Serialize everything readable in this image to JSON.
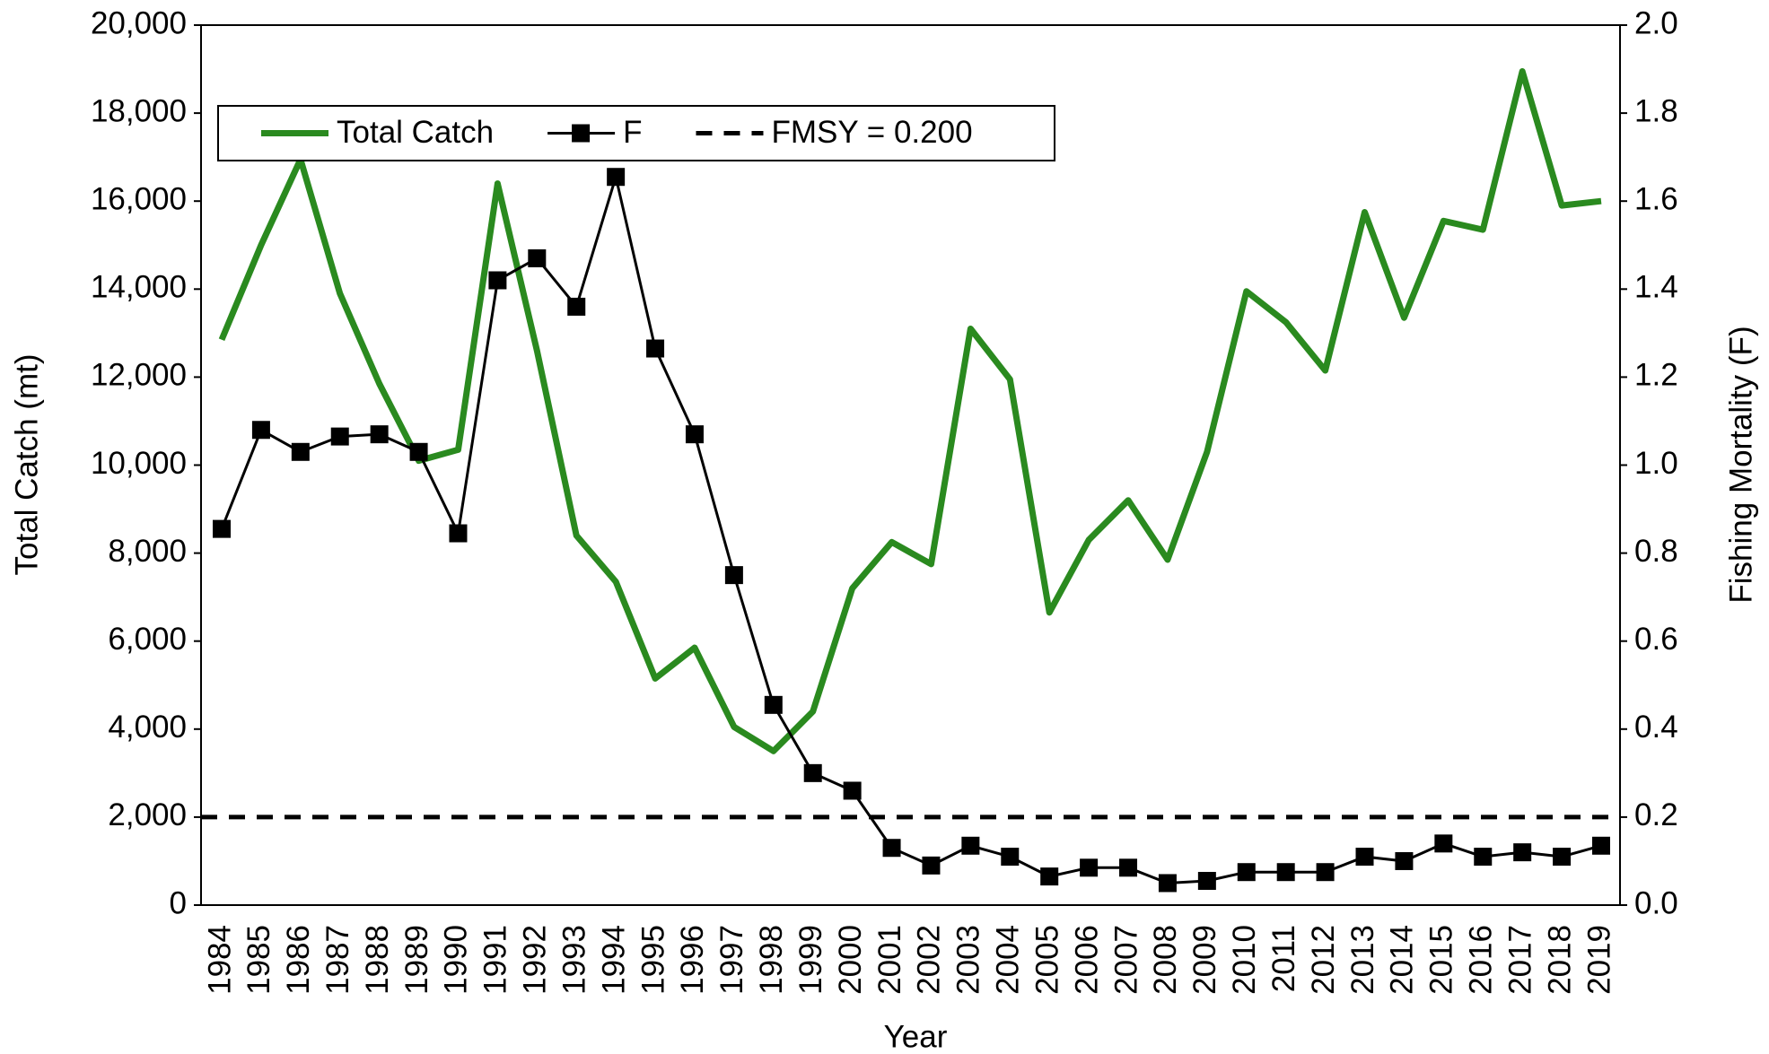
{
  "chart_data": {
    "type": "line",
    "xlabel": "Year",
    "ylabel": "Total Catch (mt)",
    "y2label": "Fishing Mortality (F)",
    "categories": [
      "1984",
      "1985",
      "1986",
      "1987",
      "1988",
      "1989",
      "1990",
      "1991",
      "1992",
      "1993",
      "1994",
      "1995",
      "1996",
      "1997",
      "1998",
      "1999",
      "2000",
      "2001",
      "2002",
      "2003",
      "2004",
      "2005",
      "2006",
      "2007",
      "2008",
      "2009",
      "2010",
      "2011",
      "2012",
      "2013",
      "2014",
      "2015",
      "2016",
      "2017",
      "2018",
      "2019"
    ],
    "series": [
      {
        "name": "Total Catch",
        "color": "#2a8a1f",
        "axis": "y",
        "values": [
          12850,
          15000,
          16950,
          13900,
          11850,
          10100,
          10350,
          16400,
          12600,
          8400,
          7350,
          5150,
          5850,
          4050,
          3500,
          4400,
          7200,
          8250,
          7750,
          13100,
          11950,
          6650,
          8300,
          9200,
          7850,
          10300,
          13950,
          13250,
          12150,
          15750,
          13350,
          15550,
          15350,
          18950,
          15900,
          16000
        ]
      },
      {
        "name": "F",
        "color": "#000000",
        "axis": "y2",
        "marker": "square",
        "values": [
          0.855,
          1.08,
          1.03,
          1.065,
          1.07,
          1.03,
          0.845,
          1.42,
          1.47,
          1.36,
          1.655,
          1.265,
          1.07,
          0.75,
          0.455,
          0.3,
          0.26,
          0.13,
          0.09,
          0.135,
          0.11,
          0.065,
          0.085,
          0.085,
          0.05,
          0.055,
          0.075,
          0.075,
          0.075,
          0.11,
          0.1,
          0.14,
          0.11,
          0.12,
          0.11,
          0.135
        ]
      }
    ],
    "hlines": [
      {
        "name": "FMSY = 0.200",
        "value": 0.2,
        "axis": "y2",
        "style": "dashed",
        "color": "#000000"
      }
    ],
    "ylim": [
      0,
      20000
    ],
    "yticks": [
      0,
      {
        "value": 2000,
        "label": "2,000"
      },
      {
        "value": 4000,
        "label": "4,000"
      },
      {
        "value": 6000,
        "label": "6,000"
      },
      {
        "value": 8000,
        "label": "8,000"
      },
      {
        "value": 10000,
        "label": "10,000"
      },
      {
        "value": 12000,
        "label": "12,000"
      },
      {
        "value": 14000,
        "label": "14,000"
      },
      {
        "value": 16000,
        "label": "16,000"
      },
      {
        "value": 18000,
        "label": "18,000"
      },
      {
        "value": 20000,
        "label": "20,000"
      }
    ],
    "y2lim": [
      0,
      2
    ],
    "y2ticks": [
      {
        "value": 0,
        "label": "0.0"
      },
      {
        "value": 0.2,
        "label": "0.2"
      },
      {
        "value": 0.4,
        "label": "0.4"
      },
      {
        "value": 0.6,
        "label": "0.6"
      },
      {
        "value": 0.8,
        "label": "0.8"
      },
      {
        "value": 1,
        "label": "1.0"
      },
      {
        "value": 1.2,
        "label": "1.2"
      },
      {
        "value": 1.4,
        "label": "1.4"
      },
      {
        "value": 1.6,
        "label": "1.6"
      },
      {
        "value": 1.8,
        "label": "1.8"
      },
      {
        "value": 2,
        "label": "2.0"
      }
    ],
    "grid": false,
    "legend": "upper left"
  }
}
